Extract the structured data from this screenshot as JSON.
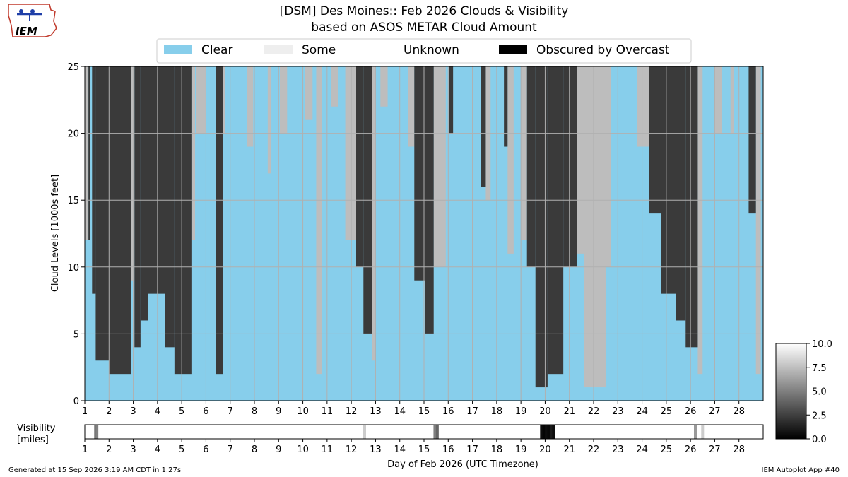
{
  "header": {
    "logo_text": "IEM",
    "title_line1": "[DSM] Des Moines:: Feb 2026 Clouds & Visibility",
    "title_line2": "based on ASOS METAR Cloud Amount"
  },
  "legend": {
    "placement": "top-center",
    "items": [
      {
        "label": "Clear",
        "color": "#87ceeb"
      },
      {
        "label": "Some",
        "color": "#eeeeee"
      },
      {
        "label": "Unknown",
        "color": "#ffffff"
      },
      {
        "label": "Obscured by Overcast",
        "color": "#000000"
      }
    ]
  },
  "footer": {
    "generated": "Generated at 15 Sep 2026 3:19 AM CDT in 1.27s",
    "app": "IEM Autoplot App #40"
  },
  "chart_data": [
    {
      "type": "area",
      "name": "cloud-levels",
      "ylabel": "Cloud Levels [1000s feet]",
      "xlabel": "Day of Feb 2026 (UTC Timezone)",
      "xlim": [
        1,
        29
      ],
      "ylim": [
        0,
        25
      ],
      "grid": true,
      "x_ticks": [
        "1",
        "2",
        "3",
        "4",
        "5",
        "6",
        "7",
        "8",
        "9",
        "10",
        "11",
        "12",
        "13",
        "14",
        "15",
        "16",
        "17",
        "18",
        "19",
        "20",
        "21",
        "22",
        "23",
        "24",
        "25",
        "26",
        "27",
        "28"
      ],
      "y_ticks": [
        "0",
        "5",
        "10",
        "15",
        "20",
        "25"
      ],
      "colors": {
        "clear": "#87ceeb",
        "some": "#bdbdbd",
        "mostly": "#9a9a9a",
        "overcast": "#3a3a3a",
        "grid": "#b0b0b0"
      },
      "overcast_periods": [
        {
          "start": 1.15,
          "end": 1.22,
          "base": 12
        },
        {
          "start": 1.3,
          "end": 1.45,
          "base": 8
        },
        {
          "start": 1.45,
          "end": 2.0,
          "base": 3
        },
        {
          "start": 2.0,
          "end": 2.9,
          "base": 2
        },
        {
          "start": 3.05,
          "end": 3.3,
          "base": 4
        },
        {
          "start": 3.3,
          "end": 3.6,
          "base": 6
        },
        {
          "start": 3.6,
          "end": 4.3,
          "base": 8
        },
        {
          "start": 4.3,
          "end": 4.7,
          "base": 4
        },
        {
          "start": 4.7,
          "end": 5.4,
          "base": 2
        },
        {
          "start": 6.4,
          "end": 6.7,
          "base": 2
        },
        {
          "start": 12.2,
          "end": 12.5,
          "base": 10
        },
        {
          "start": 12.5,
          "end": 12.85,
          "base": 5
        },
        {
          "start": 14.6,
          "end": 15.05,
          "base": 9
        },
        {
          "start": 15.05,
          "end": 15.4,
          "base": 5
        },
        {
          "start": 16.05,
          "end": 16.2,
          "base": 20
        },
        {
          "start": 17.35,
          "end": 17.55,
          "base": 16
        },
        {
          "start": 18.3,
          "end": 18.45,
          "base": 19
        },
        {
          "start": 19.25,
          "end": 19.6,
          "base": 10
        },
        {
          "start": 19.6,
          "end": 20.1,
          "base": 1
        },
        {
          "start": 20.1,
          "end": 20.75,
          "base": 2
        },
        {
          "start": 20.75,
          "end": 21.3,
          "base": 10
        },
        {
          "start": 24.3,
          "end": 24.8,
          "base": 14
        },
        {
          "start": 24.8,
          "end": 25.4,
          "base": 8
        },
        {
          "start": 25.4,
          "end": 25.8,
          "base": 6
        },
        {
          "start": 25.8,
          "end": 26.3,
          "base": 4
        },
        {
          "start": 28.4,
          "end": 28.7,
          "base": 14
        }
      ],
      "some_periods": [
        {
          "start": 1.0,
          "end": 1.15,
          "base": 12
        },
        {
          "start": 2.9,
          "end": 3.05,
          "base": 9
        },
        {
          "start": 5.4,
          "end": 5.55,
          "base": 12
        },
        {
          "start": 5.6,
          "end": 6.0,
          "base": 20
        },
        {
          "start": 6.7,
          "end": 6.8,
          "base": 20
        },
        {
          "start": 7.7,
          "end": 7.95,
          "base": 19
        },
        {
          "start": 8.55,
          "end": 8.7,
          "base": 17
        },
        {
          "start": 9.05,
          "end": 9.35,
          "base": 20
        },
        {
          "start": 10.1,
          "end": 10.4,
          "base": 21
        },
        {
          "start": 10.55,
          "end": 10.8,
          "base": 2
        },
        {
          "start": 11.15,
          "end": 11.45,
          "base": 22
        },
        {
          "start": 11.75,
          "end": 12.2,
          "base": 12
        },
        {
          "start": 12.85,
          "end": 13.0,
          "base": 3
        },
        {
          "start": 13.2,
          "end": 13.5,
          "base": 22
        },
        {
          "start": 14.35,
          "end": 14.6,
          "base": 19
        },
        {
          "start": 15.4,
          "end": 15.9,
          "base": 10
        },
        {
          "start": 17.55,
          "end": 17.75,
          "base": 15
        },
        {
          "start": 18.45,
          "end": 18.7,
          "base": 11
        },
        {
          "start": 19.0,
          "end": 19.25,
          "base": 12
        },
        {
          "start": 21.3,
          "end": 21.6,
          "base": 11
        },
        {
          "start": 21.6,
          "end": 22.5,
          "base": 1
        },
        {
          "start": 22.5,
          "end": 22.7,
          "base": 10
        },
        {
          "start": 23.8,
          "end": 24.3,
          "base": 19
        },
        {
          "start": 26.3,
          "end": 26.5,
          "base": 2
        },
        {
          "start": 27.0,
          "end": 27.3,
          "base": 20
        },
        {
          "start": 27.65,
          "end": 27.8,
          "base": 20
        },
        {
          "start": 28.7,
          "end": 28.9,
          "base": 2
        }
      ]
    },
    {
      "type": "heatmap",
      "name": "visibility",
      "ylabel_line1": "Visibility",
      "ylabel_line2": "[miles]",
      "xlim": [
        1,
        29
      ],
      "x_ticks": [
        "1",
        "2",
        "3",
        "4",
        "5",
        "6",
        "7",
        "8",
        "9",
        "10",
        "11",
        "12",
        "13",
        "14",
        "15",
        "16",
        "17",
        "18",
        "19",
        "20",
        "21",
        "22",
        "23",
        "24",
        "25",
        "26",
        "27",
        "28"
      ],
      "default_value": 10.0,
      "low_visibility": [
        {
          "day": 1.45,
          "value": 3
        },
        {
          "day": 1.5,
          "value": 5
        },
        {
          "day": 12.55,
          "value": 8
        },
        {
          "day": 15.45,
          "value": 5
        },
        {
          "day": 15.55,
          "value": 4
        },
        {
          "day": 19.85,
          "value": 0.5
        },
        {
          "day": 19.95,
          "value": 0.2
        },
        {
          "day": 20.05,
          "value": 0.5
        },
        {
          "day": 20.15,
          "value": 0.3
        },
        {
          "day": 20.25,
          "value": 1
        },
        {
          "day": 20.35,
          "value": 0.5
        },
        {
          "day": 26.2,
          "value": 6
        },
        {
          "day": 26.5,
          "value": 8
        }
      ]
    },
    {
      "type": "colorbar",
      "name": "visibility-scale",
      "range": [
        0.0,
        10.0
      ],
      "ticks": [
        "0.0",
        "2.5",
        "5.0",
        "7.5",
        "10.0"
      ]
    }
  ]
}
